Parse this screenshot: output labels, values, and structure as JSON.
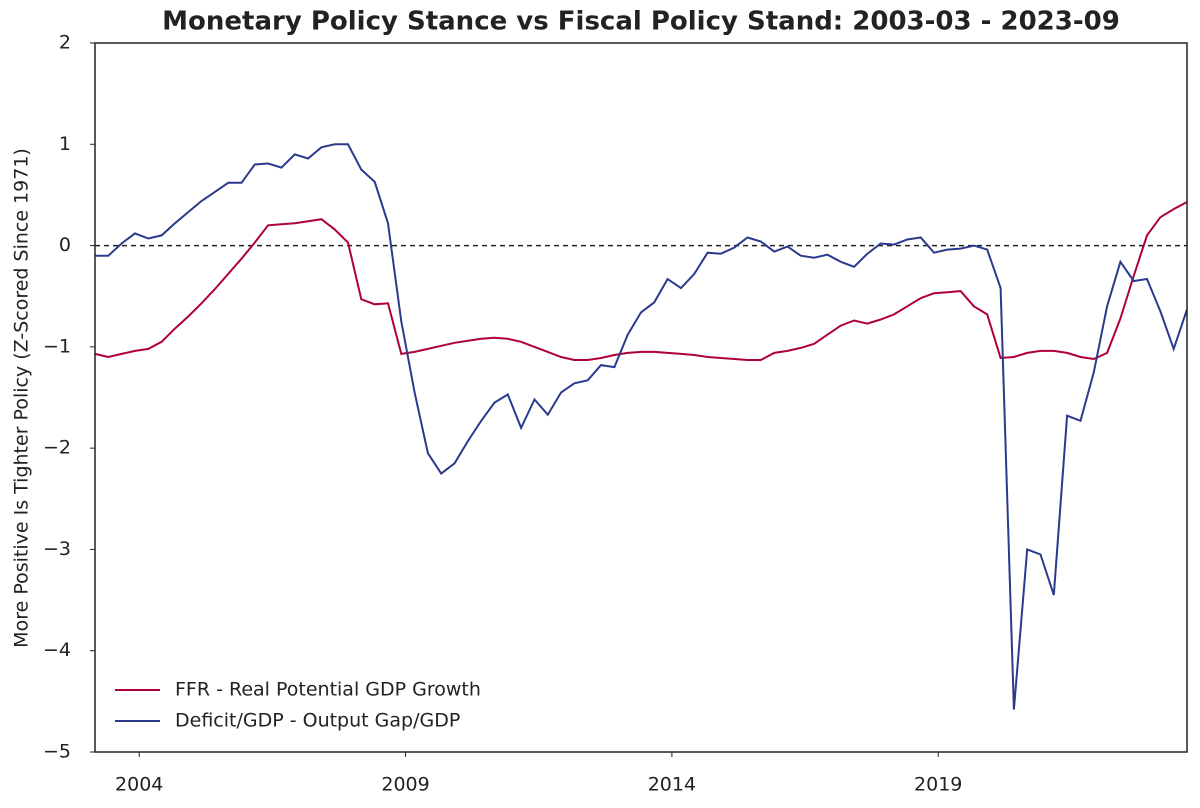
{
  "chart_data": {
    "type": "line",
    "title": "Monetary Policy Stance vs Fiscal Policy Stand: 2003-03 - 2023-09",
    "y_label": "More Positive Is Tighter Policy (Z-Scored Since 1971)",
    "x": [
      2003.17,
      2003.42,
      2003.67,
      2003.92,
      2004.17,
      2004.42,
      2004.67,
      2004.92,
      2005.17,
      2005.42,
      2005.67,
      2005.92,
      2006.17,
      2006.42,
      2006.67,
      2006.92,
      2007.17,
      2007.42,
      2007.67,
      2007.92,
      2008.17,
      2008.42,
      2008.67,
      2008.92,
      2009.17,
      2009.42,
      2009.67,
      2009.92,
      2010.17,
      2010.42,
      2010.67,
      2010.92,
      2011.17,
      2011.42,
      2011.67,
      2011.92,
      2012.17,
      2012.42,
      2012.67,
      2012.92,
      2013.17,
      2013.42,
      2013.67,
      2013.92,
      2014.17,
      2014.42,
      2014.67,
      2014.92,
      2015.17,
      2015.42,
      2015.67,
      2015.92,
      2016.17,
      2016.42,
      2016.67,
      2016.92,
      2017.17,
      2017.42,
      2017.67,
      2017.92,
      2018.17,
      2018.42,
      2018.67,
      2018.92,
      2019.17,
      2019.42,
      2019.67,
      2019.92,
      2020.17,
      2020.42,
      2020.67,
      2020.92,
      2021.17,
      2021.42,
      2021.67,
      2021.92,
      2022.17,
      2022.42,
      2022.67,
      2022.92,
      2023.17,
      2023.42,
      2023.67
    ],
    "series": [
      {
        "name": "FFR - Real Potential GDP Growth",
        "color": "#b0003a",
        "values": [
          -1.07,
          -1.1,
          -1.07,
          -1.04,
          -1.02,
          -0.95,
          -0.82,
          -0.7,
          -0.57,
          -0.43,
          -0.28,
          -0.13,
          0.03,
          0.2,
          0.21,
          0.22,
          0.24,
          0.26,
          0.16,
          0.03,
          -0.53,
          -0.58,
          -0.57,
          -1.07,
          -1.05,
          -1.02,
          -0.99,
          -0.96,
          -0.94,
          -0.92,
          -0.91,
          -0.92,
          -0.95,
          -1.0,
          -1.05,
          -1.1,
          -1.13,
          -1.13,
          -1.11,
          -1.08,
          -1.06,
          -1.05,
          -1.05,
          -1.06,
          -1.07,
          -1.08,
          -1.1,
          -1.11,
          -1.12,
          -1.13,
          -1.13,
          -1.06,
          -1.04,
          -1.01,
          -0.97,
          -0.88,
          -0.79,
          -0.74,
          -0.77,
          -0.73,
          -0.68,
          -0.6,
          -0.52,
          -0.47,
          -0.46,
          -0.45,
          -0.6,
          -0.68,
          -1.11,
          -1.1,
          -1.06,
          -1.04,
          -1.04,
          -1.06,
          -1.1,
          -1.12,
          -1.06,
          -0.72,
          -0.3,
          0.1,
          0.28,
          0.36,
          0.43
        ]
      },
      {
        "name": "Deficit/GDP - Output Gap/GDP",
        "color": "#2b3a8c",
        "values": [
          -0.1,
          -0.1,
          0.02,
          0.12,
          0.07,
          0.1,
          0.22,
          0.33,
          0.44,
          0.53,
          0.62,
          0.62,
          0.8,
          0.81,
          0.77,
          0.9,
          0.86,
          0.97,
          1.0,
          1.0,
          0.75,
          0.63,
          0.22,
          -0.75,
          -1.45,
          -2.05,
          -2.25,
          -2.15,
          -1.93,
          -1.73,
          -1.55,
          -1.47,
          -1.8,
          -1.52,
          -1.67,
          -1.45,
          -1.36,
          -1.33,
          -1.18,
          -1.2,
          -0.88,
          -0.66,
          -0.56,
          -0.33,
          -0.42,
          -0.28,
          -0.07,
          -0.08,
          -0.02,
          0.08,
          0.04,
          -0.06,
          -0.01,
          -0.1,
          -0.12,
          -0.09,
          -0.16,
          -0.21,
          -0.08,
          0.02,
          0.01,
          0.06,
          0.08,
          -0.07,
          -0.04,
          -0.03,
          0.0,
          -0.04,
          -0.42,
          -4.58,
          -3.0,
          -3.05,
          -3.45,
          -1.68,
          -1.73,
          -1.25,
          -0.6,
          -0.16,
          -0.35,
          -0.33,
          -0.65,
          -1.02,
          -0.63
        ]
      }
    ],
    "xlim": [
      2003.17,
      2023.67
    ],
    "xticks": [
      2004,
      2009,
      2014,
      2019
    ],
    "ylim": [
      -5,
      2
    ],
    "yticks": [
      {
        "value": -5,
        "label": "−5"
      },
      {
        "value": -4,
        "label": "−4"
      },
      {
        "value": -3,
        "label": "−3"
      },
      {
        "value": -2,
        "label": "−2"
      },
      {
        "value": -1,
        "label": "−1"
      },
      0,
      1,
      2
    ],
    "reference_line": 0,
    "legend": "lower left",
    "grid": false
  }
}
